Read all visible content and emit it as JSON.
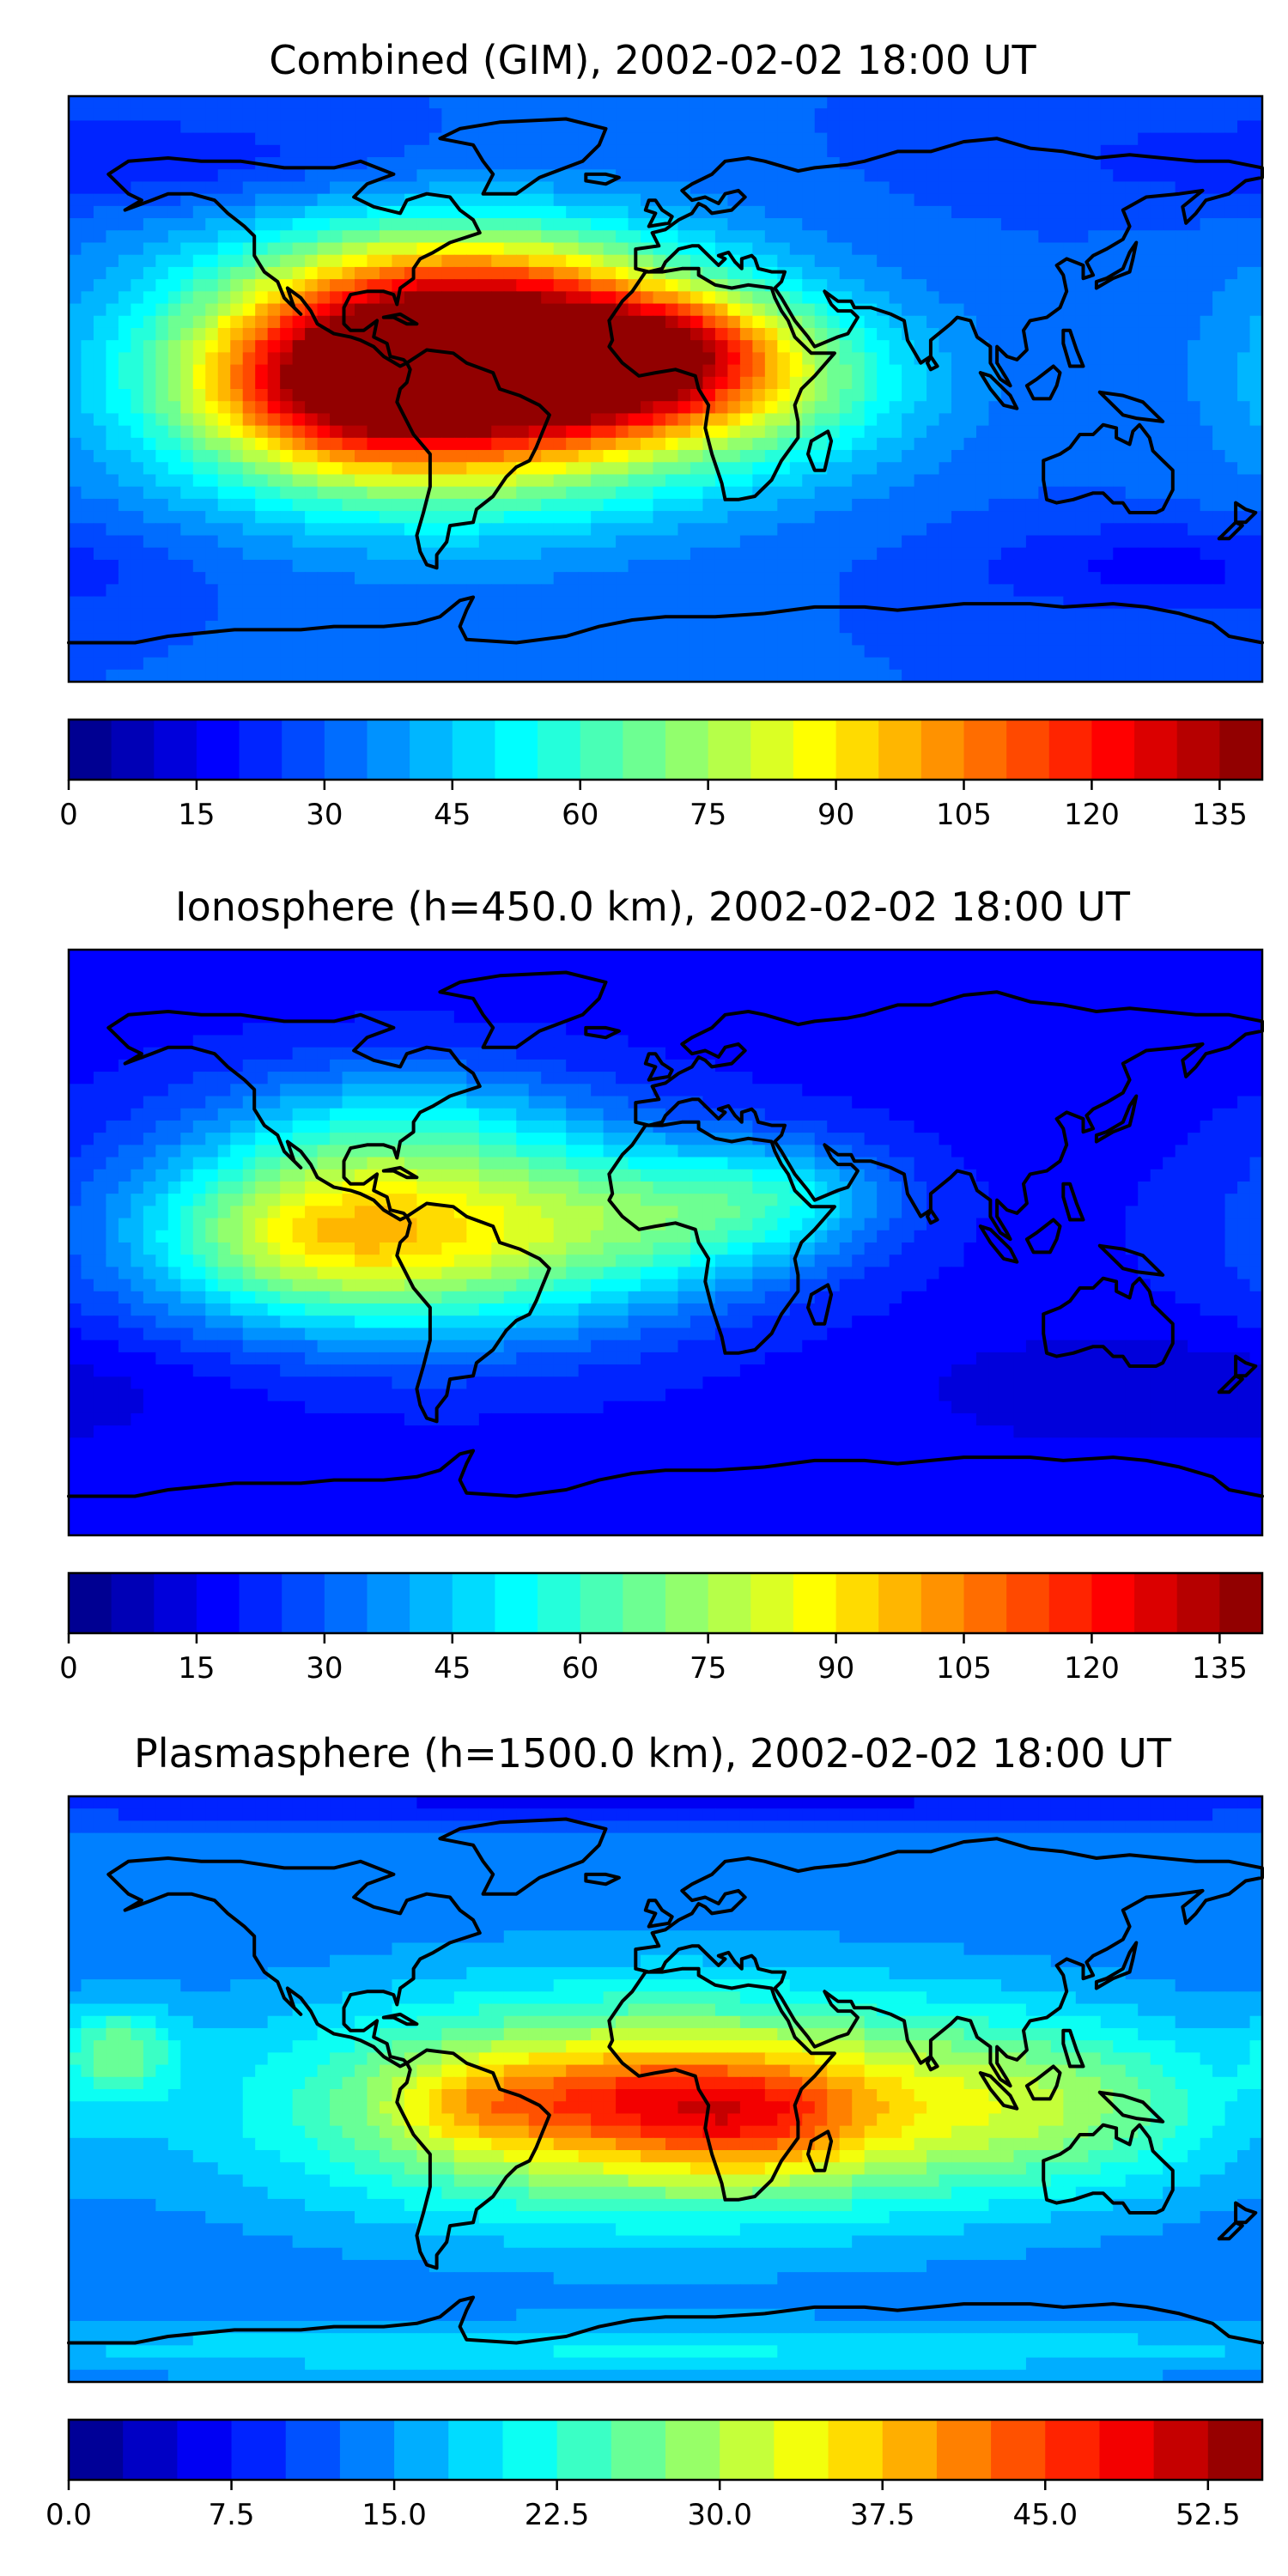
{
  "panels": [
    {
      "title": "Combined (GIM), 2002-02-02 18:00 UT",
      "colorbar": {
        "vmin": 0,
        "vmax": 140,
        "levels": 28,
        "ticks": [
          "0",
          "15",
          "30",
          "45",
          "60",
          "75",
          "90",
          "105",
          "120",
          "135"
        ],
        "tick_values": [
          0,
          15,
          30,
          45,
          60,
          75,
          90,
          105,
          120,
          135
        ]
      },
      "field": {
        "background": 30,
        "blobs": [
          {
            "lon": -65,
            "lat": 5,
            "amp": 110,
            "slon": 55,
            "slat": 26
          },
          {
            "lon": -20,
            "lat": 8,
            "amp": 55,
            "slon": 30,
            "slat": 14
          },
          {
            "lon": -95,
            "lat": 2,
            "amp": 40,
            "slon": 30,
            "slat": 16
          },
          {
            "lon": -60,
            "lat": 32,
            "amp": 25,
            "slon": 40,
            "slat": 14
          },
          {
            "lon": 30,
            "lat": 2,
            "amp": 28,
            "slon": 35,
            "slat": 18
          },
          {
            "lon": 10,
            "lat": 15,
            "amp": 15,
            "slon": 20,
            "slat": 10
          },
          {
            "lon": 150,
            "lat": -55,
            "amp": -12,
            "slon": 40,
            "slat": 10
          },
          {
            "lon": -160,
            "lat": 70,
            "amp": -10,
            "slon": 60,
            "slat": 10
          }
        ]
      }
    },
    {
      "title": "Ionosphere  (h=450.0 km), 2002-02-02 18:00 UT",
      "colorbar": {
        "vmin": 0,
        "vmax": 140,
        "levels": 28,
        "ticks": [
          "0",
          "15",
          "30",
          "45",
          "60",
          "75",
          "90",
          "105",
          "120",
          "135"
        ],
        "tick_values": [
          0,
          15,
          30,
          45,
          60,
          75,
          90,
          105,
          120,
          135
        ]
      },
      "field": {
        "background": 18,
        "blobs": [
          {
            "lon": -75,
            "lat": 3,
            "amp": 65,
            "slon": 55,
            "slat": 22
          },
          {
            "lon": -110,
            "lat": 3,
            "amp": 20,
            "slon": 30,
            "slat": 16
          },
          {
            "lon": -80,
            "lat": 38,
            "amp": 18,
            "slon": 40,
            "slat": 14
          },
          {
            "lon": 5,
            "lat": 8,
            "amp": 22,
            "slon": 35,
            "slat": 15
          },
          {
            "lon": 35,
            "lat": 15,
            "amp": 18,
            "slon": 25,
            "slat": 12
          },
          {
            "lon": 150,
            "lat": -45,
            "amp": -8,
            "slon": 50,
            "slat": 12
          }
        ]
      }
    },
    {
      "title": "Plasmasphere (h=1500.0 km), 2002-02-02 18:00 UT",
      "colorbar": {
        "vmin": 0,
        "vmax": 55,
        "levels": 22,
        "ticks": [
          "0.0",
          "7.5",
          "15.0",
          "22.5",
          "30.0",
          "37.5",
          "45.0",
          "52.5"
        ],
        "tick_values": [
          0,
          7.5,
          15,
          22.5,
          30,
          37.5,
          45,
          52.5
        ]
      },
      "field": {
        "background": 13,
        "blobs": [
          {
            "lon": 0,
            "lat": -5,
            "amp": 25,
            "slon": 80,
            "slat": 24
          },
          {
            "lon": 25,
            "lat": -8,
            "amp": 12,
            "slon": 25,
            "slat": 12
          },
          {
            "lon": -15,
            "lat": -3,
            "amp": 6,
            "slon": 20,
            "slat": 10
          },
          {
            "lon": -55,
            "lat": -5,
            "amp": 8,
            "slon": 20,
            "slat": 10
          },
          {
            "lon": 120,
            "lat": -5,
            "amp": 9,
            "slon": 40,
            "slat": 18
          },
          {
            "lon": -165,
            "lat": 12,
            "amp": 11,
            "slon": 12,
            "slat": 10
          },
          {
            "lon": 0,
            "lat": -80,
            "amp": 7,
            "slon": 180,
            "slat": 6
          },
          {
            "lon": 0,
            "lat": 88,
            "amp": -6,
            "slon": 180,
            "slat": 5
          }
        ]
      }
    }
  ]
}
